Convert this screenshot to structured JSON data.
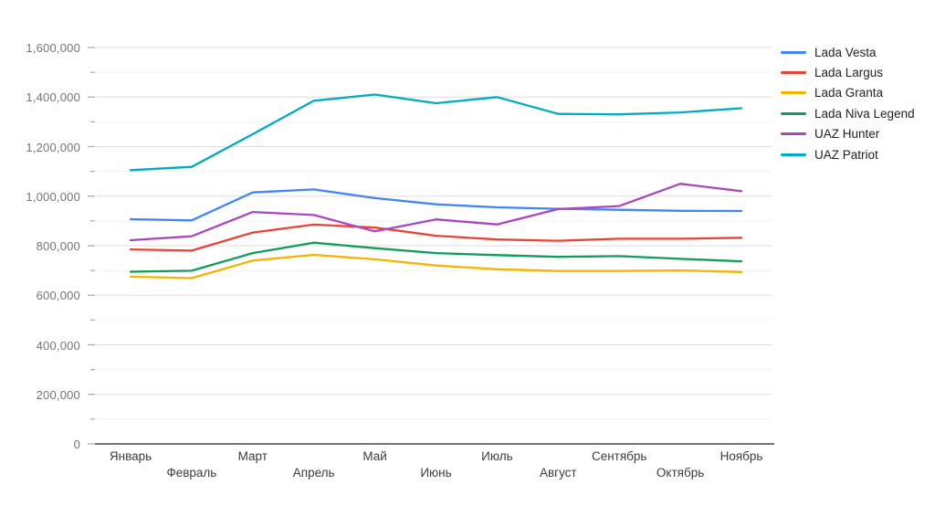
{
  "chart_data": {
    "type": "line",
    "title": "",
    "categories": [
      "Январь",
      "Февраль",
      "Март",
      "Апрель",
      "Май",
      "Июнь",
      "Июль",
      "Август",
      "Сентябрь",
      "Октябрь",
      "Ноябрь"
    ],
    "series": [
      {
        "name": "Lada Vesta",
        "color": "#4285F4",
        "values": [
          907000,
          902000,
          1015000,
          1027000,
          992000,
          967000,
          955000,
          949000,
          945000,
          941000,
          940000
        ]
      },
      {
        "name": "Lada Largus",
        "color": "#EA4335",
        "values": [
          785000,
          780000,
          853000,
          885000,
          873000,
          840000,
          825000,
          820000,
          828000,
          828000,
          832000
        ]
      },
      {
        "name": "Lada Granta",
        "color": "#F4B400",
        "values": [
          675000,
          669000,
          740000,
          763000,
          745000,
          720000,
          705000,
          698000,
          698000,
          700000,
          694000
        ]
      },
      {
        "name": "Lada Niva Legend",
        "color": "#0F9D58",
        "values": [
          695000,
          699000,
          770000,
          812000,
          790000,
          770000,
          762000,
          755000,
          758000,
          747000,
          737000
        ]
      },
      {
        "name": "UAZ Hunter",
        "color": "#AB47BC",
        "values": [
          822000,
          838000,
          936000,
          924000,
          858000,
          906000,
          886000,
          948000,
          960000,
          1050000,
          1020000
        ]
      },
      {
        "name": "UAZ Patriot",
        "color": "#00ACC1",
        "values": [
          1105000,
          1118000,
          1250000,
          1385000,
          1410000,
          1375000,
          1400000,
          1332000,
          1330000,
          1338000,
          1355000
        ]
      }
    ],
    "ylim": [
      0,
      1600000
    ],
    "y_major_step": 200000,
    "y_minor_step": 100000,
    "y_tick_labels": [
      "0",
      "200,000",
      "400,000",
      "600,000",
      "800,000",
      "1,000,000",
      "1,200,000",
      "1,400,000",
      "1,600,000"
    ],
    "grid": "horizontal, minor + major",
    "legend_position": "right",
    "x_label_layout": "staggered-two-rows"
  },
  "axis_colors": {
    "baseline": "#757575",
    "major_grid": "#dedede",
    "minor_grid": "#f2f2f2",
    "tick": "#aeaeae",
    "y_label": "#757575",
    "x_label": "#3c3c3c",
    "legend_text": "#212121"
  }
}
